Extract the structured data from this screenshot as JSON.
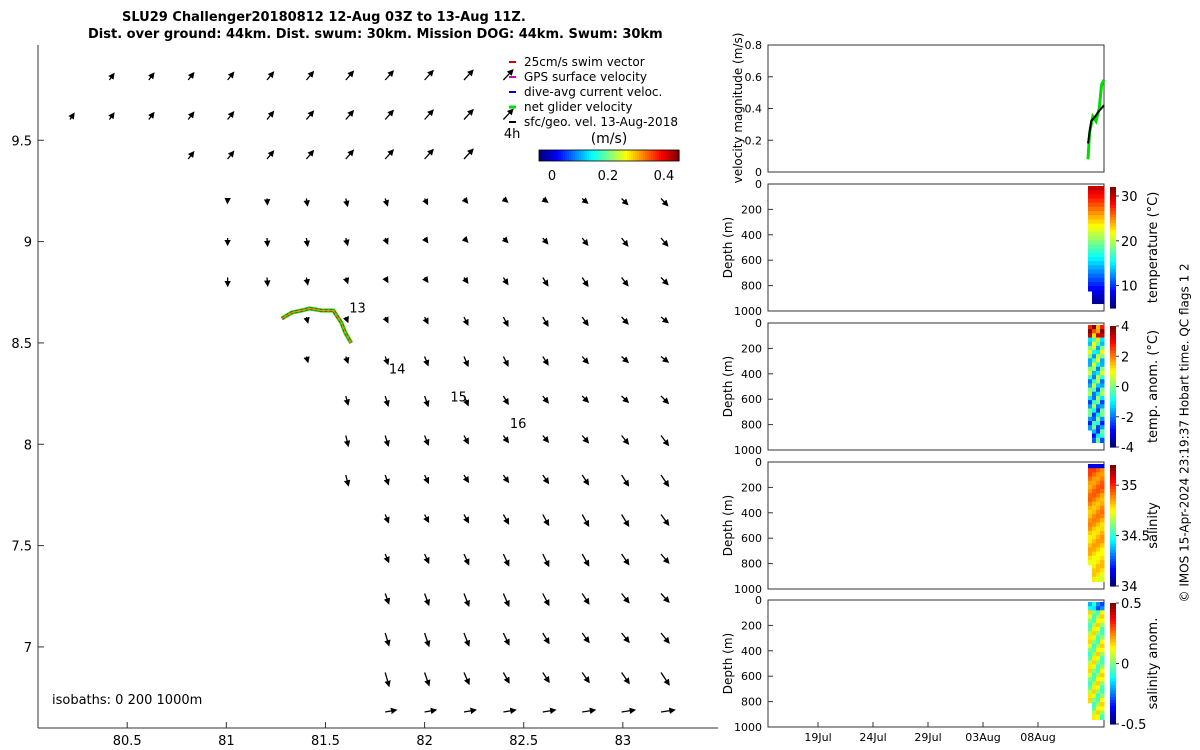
{
  "title": {
    "line1": "SLU29 Challenger20180812 12-Aug 03Z to 13-Aug 11Z.",
    "line2": "Dist. over ground: 44km. Dist. swum: 30km. Mission DOG: 44km. Swum: 30km"
  },
  "colors": {
    "swim_vector": "#cc0000",
    "gps_velocity": "#cc00cc",
    "dive_avg": "#0000cc",
    "net_glider": "#00dd00",
    "geo_arrows": "#000000",
    "track": "#d4a017"
  },
  "chart_data": [
    {
      "type": "quiver-map",
      "name": "map",
      "xlim": [
        80.05,
        83.48
      ],
      "ylim": [
        6.6,
        9.97
      ],
      "xticks": [
        "80.5",
        "81",
        "81.5",
        "82",
        "82.5",
        "83"
      ],
      "yticks": [
        "7",
        "7.5",
        "8",
        "8.5",
        "9",
        "9.5"
      ],
      "legend": [
        "25cm/s swim vector",
        "GPS surface velocity",
        "dive-avg current veloc.",
        "net glider velocity",
        "sfc/geo. vel. 13-Aug-2018"
      ],
      "colorbar": {
        "label": "(m/s)",
        "ticks": [
          "0",
          "0.2",
          "0.4"
        ],
        "range": [
          0,
          0.5
        ]
      },
      "glider_track": [
        [
          81.28,
          8.62
        ],
        [
          81.33,
          8.65
        ],
        [
          81.38,
          8.66
        ],
        [
          81.42,
          8.67
        ],
        [
          81.48,
          8.66
        ],
        [
          81.54,
          8.66
        ],
        [
          81.58,
          8.6
        ],
        [
          81.6,
          8.55
        ],
        [
          81.63,
          8.5
        ]
      ],
      "day_labels": [
        {
          "text": "13",
          "lon": 81.62,
          "lat": 8.65
        },
        {
          "text": "14",
          "lon": 81.82,
          "lat": 8.35
        },
        {
          "text": "15",
          "lon": 82.13,
          "lat": 8.21
        },
        {
          "text": "16",
          "lon": 82.43,
          "lat": 8.08
        },
        {
          "text": "4h",
          "lon": 82.4,
          "lat": 9.51
        }
      ],
      "isobaths_note": "isobaths: 0  200  1000m"
    },
    {
      "type": "line",
      "name": "velocity",
      "ylabel": "velocity magnitude (m/s)",
      "ylim": [
        0,
        0.8
      ],
      "yticks": [
        "0",
        "0.2",
        "0.4",
        "0.6",
        "0.8"
      ],
      "xticks": [
        "19Jul",
        "24Jul",
        "29Jul",
        "03Aug",
        "08Aug"
      ],
      "series": [
        {
          "name": "net glider velocity",
          "color": "#00dd00",
          "values": [
            [
              0.0,
              0.08
            ],
            [
              0.1,
              0.25
            ],
            [
              0.3,
              0.35
            ],
            [
              0.5,
              0.32
            ],
            [
              0.7,
              0.4
            ],
            [
              0.85,
              0.55
            ],
            [
              1.0,
              0.58
            ]
          ]
        },
        {
          "name": "swim",
          "color": "#000000",
          "values": [
            [
              0.0,
              0.18
            ],
            [
              0.2,
              0.32
            ],
            [
              0.45,
              0.35
            ],
            [
              0.65,
              0.38
            ],
            [
              1.0,
              0.42
            ]
          ]
        }
      ]
    },
    {
      "type": "heatmap",
      "name": "temperature",
      "clabel": "temperature (°C)",
      "yticks": [
        "0",
        "200",
        "400",
        "600",
        "800",
        "1000"
      ],
      "ylabel": "Depth (m)",
      "cticks": [
        "10",
        "20",
        "30"
      ],
      "crange": [
        5,
        32
      ]
    },
    {
      "type": "heatmap",
      "name": "temp-anom",
      "clabel": "temp. anom. (°C)",
      "yticks": [
        "0",
        "200",
        "400",
        "600",
        "800",
        "1000"
      ],
      "ylabel": "Depth (m)",
      "cticks": [
        "-4",
        "-2",
        "0",
        "2",
        "4"
      ],
      "crange": [
        -4,
        4
      ]
    },
    {
      "type": "heatmap",
      "name": "salinity",
      "clabel": "salinity",
      "yticks": [
        "0",
        "200",
        "400",
        "600",
        "800",
        "1000"
      ],
      "ylabel": "Depth (m)",
      "cticks": [
        "34",
        "34.5",
        "35"
      ],
      "crange": [
        34,
        35.2
      ]
    },
    {
      "type": "heatmap",
      "name": "salinity-anom",
      "clabel": "salinity anom.",
      "yticks": [
        "0",
        "200",
        "400",
        "600",
        "800",
        "1000"
      ],
      "ylabel": "Depth (m)",
      "cticks": [
        "-0.5",
        "0",
        "0.5"
      ],
      "crange": [
        -0.5,
        0.5
      ]
    }
  ],
  "side_note": "© IMOS 15-Apr-2024 23:19:37 Hobart time. QC flags 1  2"
}
